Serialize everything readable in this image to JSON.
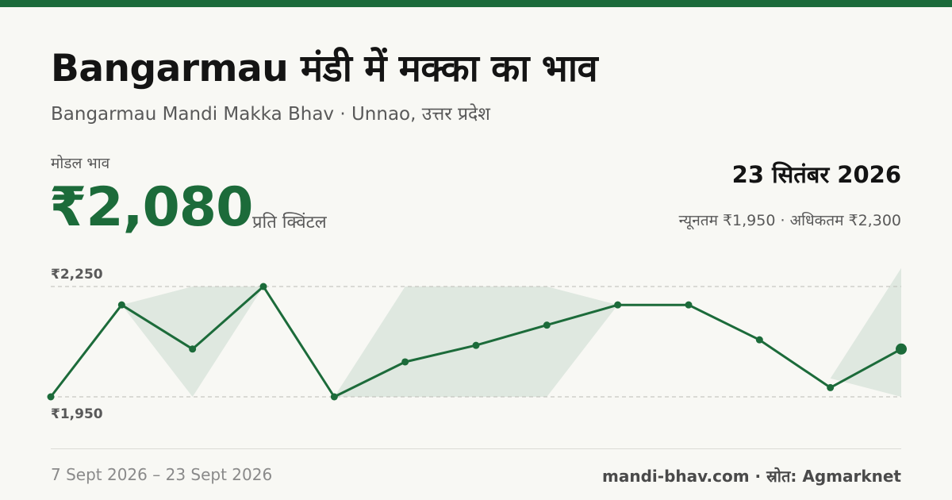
{
  "header": {
    "title": "Bangarmau मंडी में मक्का का भाव",
    "subtitle": "Bangarmau Mandi Makka Bhav · Unnao, उत्तर प्रदेश"
  },
  "summary": {
    "modal_label": "मोडल भाव",
    "modal_price": "₹2,080",
    "unit": "प्रति क्विंटल",
    "date": "23 सितंबर 2026",
    "range_text": "न्यूनतम ₹1,950 · अधिकतम ₹2,300"
  },
  "footer": {
    "period": "7 Sept 2026 – 23 Sept 2026",
    "source": "mandi-bhav.com · स्रोत: Agmarknet"
  },
  "colors": {
    "accent": "#1c6b3a",
    "band": "#dfe8e0",
    "background": "#f8f8f4"
  },
  "chart_data": {
    "type": "line",
    "title": "",
    "xlabel": "",
    "ylabel": "",
    "ylim": [
      1950,
      2250
    ],
    "y_ticks": [
      {
        "value": 2250,
        "label": "₹2,250"
      },
      {
        "value": 1950,
        "label": "₹1,950"
      }
    ],
    "grid": "dashed reference lines at tick values",
    "legend": "none",
    "series": [
      {
        "modal": [
          1950,
          2200,
          2080,
          2250,
          1950,
          2045,
          2090,
          2145,
          2200,
          2200,
          2105,
          1975,
          2080
        ],
        "min": [
          1950,
          2200,
          1950,
          2250,
          1950,
          1950,
          1950,
          1950,
          2200,
          2200,
          2105,
          2000,
          1950
        ],
        "max": [
          1950,
          2200,
          2250,
          2250,
          1950,
          2250,
          2250,
          2250,
          2200,
          2200,
          2105,
          2000,
          2300
        ]
      }
    ]
  }
}
